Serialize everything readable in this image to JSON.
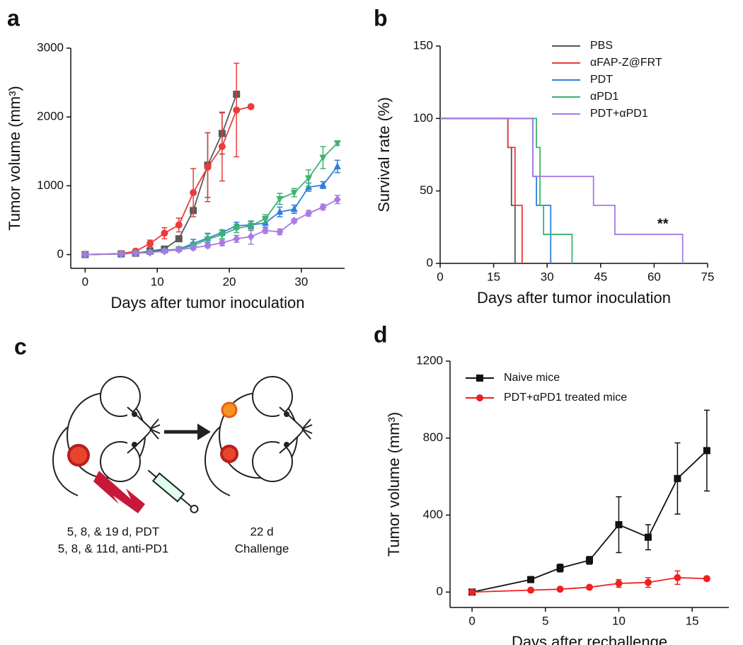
{
  "chart_data": [
    {
      "type": "line",
      "panel_label": "a",
      "x_label": "Days after tumor inoculation",
      "y_label": "Tumor volume (mm³)",
      "xlim": [
        -2,
        36
      ],
      "ylim": [
        -200,
        3000
      ],
      "xticks": [
        0,
        10,
        20,
        30
      ],
      "yticks": [
        0,
        1000,
        2000,
        3000
      ],
      "series": [
        {
          "color": "#5a5a5a",
          "marker": "square",
          "x": [
            0,
            5,
            7,
            9,
            11,
            13,
            15,
            17,
            19,
            21
          ],
          "values": [
            0,
            10,
            20,
            50,
            80,
            230,
            640,
            1300,
            1760,
            2330
          ],
          "errors": [
            0,
            5,
            10,
            20,
            30,
            30,
            40,
            470,
            300,
            30
          ]
        },
        {
          "color": "#ec3b3b",
          "marker": "circle",
          "x": [
            0,
            5,
            7,
            9,
            11,
            13,
            15,
            17,
            19,
            21,
            23
          ],
          "values": [
            0,
            15,
            50,
            160,
            310,
            430,
            900,
            1270,
            1570,
            2100,
            2150
          ],
          "errors": [
            0,
            5,
            20,
            50,
            80,
            100,
            350,
            500,
            500,
            680,
            0
          ]
        },
        {
          "color": "#2f7fdc",
          "marker": "triangle-up",
          "x": [
            0,
            5,
            7,
            9,
            11,
            13,
            15,
            17,
            19,
            21,
            23,
            25,
            27,
            29,
            31,
            33,
            35
          ],
          "values": [
            0,
            10,
            20,
            40,
            60,
            80,
            160,
            240,
            320,
            420,
            430,
            460,
            620,
            660,
            980,
            1010,
            1280
          ],
          "errors": [
            0,
            5,
            10,
            20,
            20,
            30,
            60,
            60,
            40,
            50,
            50,
            60,
            70,
            60,
            60,
            50,
            90
          ]
        },
        {
          "color": "#3cb371",
          "marker": "triangle-down",
          "x": [
            0,
            5,
            7,
            9,
            11,
            13,
            15,
            17,
            19,
            21,
            23,
            25,
            27,
            29,
            31,
            33,
            35
          ],
          "values": [
            0,
            10,
            20,
            30,
            50,
            80,
            130,
            220,
            290,
            380,
            420,
            520,
            810,
            900,
            1110,
            1410,
            1620
          ],
          "errors": [
            0,
            5,
            10,
            20,
            20,
            30,
            50,
            90,
            60,
            60,
            70,
            60,
            80,
            60,
            120,
            160,
            30
          ]
        },
        {
          "color": "#a77be3",
          "marker": "diamond",
          "x": [
            0,
            5,
            7,
            9,
            11,
            13,
            15,
            17,
            19,
            21,
            23,
            25,
            27,
            29,
            31,
            33,
            35
          ],
          "values": [
            0,
            10,
            20,
            30,
            50,
            70,
            100,
            130,
            170,
            230,
            260,
            350,
            330,
            490,
            600,
            690,
            800
          ],
          "errors": [
            0,
            5,
            10,
            10,
            20,
            20,
            30,
            30,
            40,
            50,
            110,
            40,
            40,
            30,
            40,
            40,
            60
          ]
        }
      ]
    },
    {
      "type": "step",
      "panel_label": "b",
      "x_label": "Days after tumor inoculation",
      "y_label": "Survival rate (%)",
      "xlim": [
        0,
        75
      ],
      "ylim": [
        0,
        150
      ],
      "xticks": [
        0,
        15,
        30,
        45,
        60,
        75
      ],
      "yticks": [
        0,
        50,
        100,
        150
      ],
      "legend": "upper right",
      "annotation": "**",
      "series": [
        {
          "name": "PBS",
          "color": "#555555",
          "x": [
            0,
            19,
            20,
            21
          ],
          "values": [
            100,
            80,
            40,
            0
          ]
        },
        {
          "name": "αFAP-Z@FRT",
          "color": "#ec3b3b",
          "x": [
            0,
            19,
            21,
            23
          ],
          "values": [
            100,
            80,
            40,
            0
          ]
        },
        {
          "name": "PDT",
          "color": "#2f7fdc",
          "x": [
            0,
            26,
            27,
            31
          ],
          "values": [
            100,
            60,
            40,
            0
          ]
        },
        {
          "name": "αPD1",
          "color": "#3cb371",
          "x": [
            0,
            27,
            28,
            29,
            37
          ],
          "values": [
            100,
            80,
            40,
            20,
            0
          ]
        },
        {
          "name": "PDT+αPD1",
          "color": "#a77be3",
          "x": [
            0,
            26,
            43,
            49,
            68
          ],
          "values": [
            100,
            60,
            40,
            20,
            0
          ]
        }
      ]
    },
    {
      "type": "line",
      "panel_label": "d",
      "x_label": "Days after rechallenge",
      "y_label": "Tumor volume (mm³)",
      "xlim": [
        -1.5,
        17.5
      ],
      "ylim": [
        -80,
        1200
      ],
      "xticks": [
        0,
        5,
        10,
        15
      ],
      "yticks": [
        0,
        400,
        800,
        1200
      ],
      "legend": "upper left",
      "series": [
        {
          "name": "Naive mice",
          "color": "#111111",
          "marker": "square",
          "x": [
            0,
            4,
            6,
            8,
            10,
            12,
            14,
            16
          ],
          "values": [
            0,
            65,
            125,
            165,
            350,
            285,
            590,
            735
          ],
          "errors": [
            0,
            10,
            20,
            20,
            145,
            65,
            185,
            210
          ]
        },
        {
          "name": "PDT+αPD1 treated mice",
          "color": "#f02020",
          "marker": "circle",
          "x": [
            0,
            4,
            6,
            8,
            10,
            12,
            14,
            16
          ],
          "values": [
            0,
            10,
            15,
            25,
            45,
            50,
            75,
            70
          ],
          "errors": [
            0,
            5,
            5,
            8,
            20,
            25,
            35,
            10
          ]
        }
      ]
    }
  ],
  "diagram": {
    "panel_label": "c",
    "left_caption": [
      "5, 8, & 19 d, PDT",
      "5, 8, & 11d, anti-PD1"
    ],
    "right_caption": [
      "22 d",
      "Challenge"
    ]
  }
}
